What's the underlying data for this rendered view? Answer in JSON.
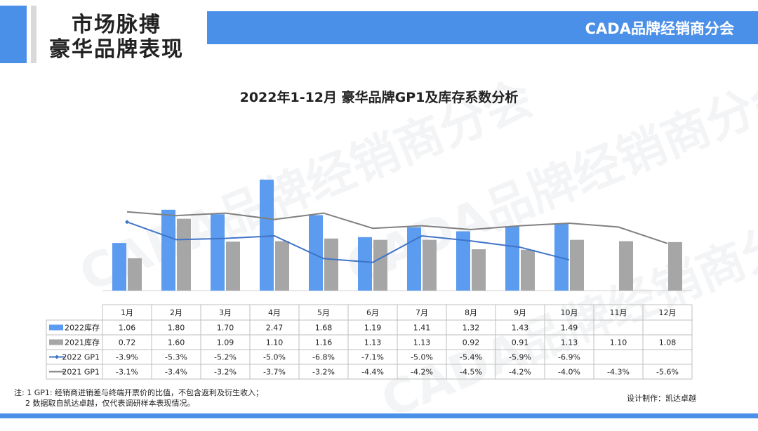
{
  "header": {
    "title_line1": "市场脉搏",
    "title_line2": "豪华品牌表现",
    "org_name": "CADA品牌经销商分会",
    "watermark": "CADA品牌经销商分会"
  },
  "footer": {
    "note_line1": "注: 1 GP1: 经销商进销差与终端开票价的比值，不包含返利及衍生收入；",
    "note_line2": "2 数据取自凯达卓越，仅代表调研样本表现情况。",
    "credit": "设计制作：凯达卓越"
  },
  "colors": {
    "accent": "#4a8fe8",
    "inventory_2022": "#5b9bf0",
    "inventory_2021": "#a6a6a6",
    "gp1_2022": "#3f74c8",
    "gp1_2021": "#808080"
  },
  "chart_data": {
    "type": "bar",
    "title": "2022年1-12月 豪华品牌GP1及库存系数分析",
    "categories": [
      "1月",
      "2月",
      "3月",
      "4月",
      "5月",
      "6月",
      "7月",
      "8月",
      "9月",
      "10月",
      "11月",
      "12月"
    ],
    "series": [
      {
        "name": "2022库存",
        "kind": "bar",
        "values": [
          1.06,
          1.8,
          1.7,
          2.47,
          1.68,
          1.19,
          1.41,
          1.32,
          1.43,
          1.49,
          null,
          null
        ],
        "labels": [
          "1.06",
          "1.80",
          "1.70",
          "2.47",
          "1.68",
          "1.19",
          "1.41",
          "1.32",
          "1.43",
          "1.49",
          "",
          ""
        ]
      },
      {
        "name": "2021库存",
        "kind": "bar",
        "values": [
          0.72,
          1.6,
          1.09,
          1.1,
          1.16,
          1.13,
          1.13,
          0.92,
          0.91,
          1.13,
          1.1,
          1.08
        ],
        "labels": [
          "0.72",
          "1.60",
          "1.09",
          "1.10",
          "1.16",
          "1.13",
          "1.13",
          "0.92",
          "0.91",
          "1.13",
          "1.10",
          "1.08"
        ]
      },
      {
        "name": "2022 GP1",
        "kind": "line",
        "values": [
          -3.9,
          -5.3,
          -5.2,
          -5.0,
          -6.8,
          -7.1,
          -5.0,
          -5.4,
          -5.9,
          -6.9,
          null,
          null
        ],
        "labels": [
          "-3.9%",
          "-5.3%",
          "-5.2%",
          "-5.0%",
          "-6.8%",
          "-7.1%",
          "-5.0%",
          "-5.4%",
          "-5.9%",
          "-6.9%",
          "",
          ""
        ]
      },
      {
        "name": "2021 GP1",
        "kind": "line",
        "values": [
          -3.1,
          -3.4,
          -3.2,
          -3.7,
          -3.2,
          -4.4,
          -4.2,
          -4.5,
          -4.2,
          -4.0,
          -4.3,
          -5.6
        ],
        "labels": [
          "-3.1%",
          "-3.4%",
          "-3.2%",
          "-3.7%",
          "-3.2%",
          "-4.4%",
          "-4.2%",
          "-4.5%",
          "-4.2%",
          "-4.0%",
          "-4.3%",
          "-5.6%"
        ]
      }
    ],
    "bar_axis_range": [
      0,
      2.5
    ],
    "line_axis_range": [
      -20,
      0
    ],
    "legend_placement": "data-table-left",
    "grid": false
  }
}
